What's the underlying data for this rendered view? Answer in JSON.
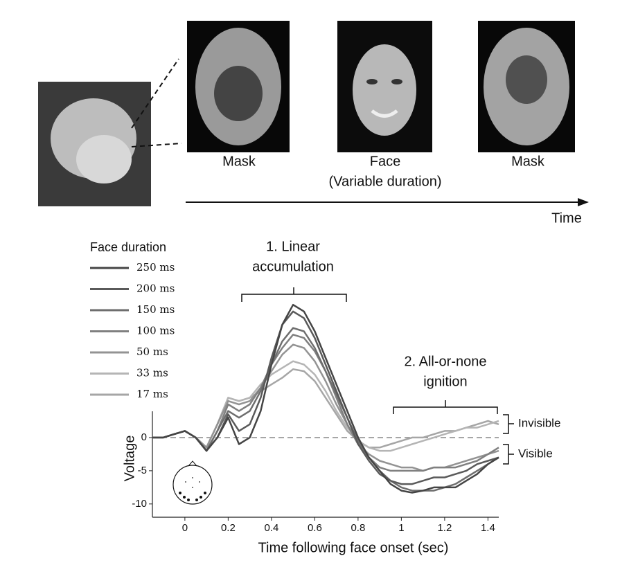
{
  "stimuli": {
    "labels": [
      "Mask",
      "Face",
      "(Variable duration)",
      "Mask"
    ],
    "time_label": "Time"
  },
  "chart_data": {
    "type": "line",
    "xlabel": "Time following face onset (sec)",
    "ylabel": "Voltage",
    "legend_title": "Face duration",
    "annotations": [
      "1. Linear",
      "accumulation",
      "2. All-or-none",
      "ignition",
      "Invisible",
      "Visible"
    ],
    "x": [
      -0.15,
      -0.1,
      -0.05,
      0,
      0.05,
      0.1,
      0.15,
      0.2,
      0.25,
      0.3,
      0.35,
      0.4,
      0.45,
      0.5,
      0.55,
      0.6,
      0.65,
      0.7,
      0.75,
      0.8,
      0.85,
      0.9,
      0.95,
      1.0,
      1.05,
      1.1,
      1.15,
      1.2,
      1.25,
      1.3,
      1.35,
      1.4,
      1.45
    ],
    "series": [
      {
        "name": "250 ms",
        "color": "#454545",
        "values": [
          0,
          0,
          0.5,
          1,
          0,
          -2,
          0,
          3,
          -1,
          0,
          4,
          11,
          17,
          20,
          19,
          16,
          12,
          8,
          4,
          0,
          -3,
          -5,
          -7,
          -8,
          -8.3,
          -8,
          -7.5,
          -7.5,
          -7.5,
          -6.5,
          -5.5,
          -4,
          -3
        ]
      },
      {
        "name": "200 ms",
        "color": "#5a5a5a",
        "values": [
          0,
          0,
          0.5,
          1,
          0,
          -2,
          0,
          3.5,
          1,
          2,
          6,
          12,
          17,
          19,
          18,
          15,
          11,
          7,
          3,
          -1,
          -3.5,
          -5.5,
          -6.5,
          -7,
          -7,
          -6.5,
          -6,
          -6,
          -5.5,
          -5,
          -4,
          -3.5,
          -3
        ]
      },
      {
        "name": "150 ms",
        "color": "#6e6e6e",
        "values": [
          0,
          0,
          0.5,
          1,
          0,
          -2,
          1,
          4,
          3,
          4,
          7,
          11,
          14.5,
          16.5,
          16,
          13.5,
          10,
          6.5,
          3,
          -0.5,
          -3,
          -5,
          -6.5,
          -7.5,
          -8,
          -8,
          -8,
          -7.5,
          -7,
          -6,
          -5,
          -4,
          -3
        ]
      },
      {
        "name": "100 ms",
        "color": "#808080",
        "values": [
          0,
          0,
          0.5,
          1,
          0,
          -2,
          1,
          5,
          4,
          5,
          7.5,
          11,
          13.5,
          15.5,
          15,
          13,
          10,
          6,
          2,
          -1,
          -3,
          -4.5,
          -5,
          -5,
          -5,
          -5,
          -4.5,
          -4.5,
          -4.5,
          -4,
          -3.5,
          -2.5,
          -1.5
        ]
      },
      {
        "name": "50 ms",
        "color": "#939393",
        "values": [
          0,
          0,
          0.5,
          1,
          0,
          -1.5,
          2,
          5.5,
          5,
          5.5,
          7.5,
          10,
          12.5,
          14,
          13.5,
          11.5,
          8.5,
          5,
          2,
          -1,
          -2.5,
          -3.5,
          -4,
          -4.5,
          -4.5,
          -5,
          -4.5,
          -4.5,
          -4,
          -3.5,
          -3,
          -2.5,
          -2
        ]
      },
      {
        "name": "33 ms",
        "color": "#b5b5b5",
        "values": [
          0,
          0,
          0.5,
          1,
          0,
          -1.5,
          2,
          6,
          5.5,
          6,
          8,
          9.5,
          10.5,
          11.5,
          11,
          9.5,
          7,
          4,
          1.5,
          -0.5,
          -1.5,
          -2,
          -2,
          -1.5,
          -1,
          -0.5,
          0,
          0.5,
          1,
          1.5,
          1.5,
          2,
          2.5
        ]
      },
      {
        "name": "17 ms",
        "color": "#a6a6a6",
        "values": [
          0,
          0,
          0.5,
          1,
          0,
          -1.5,
          2,
          6,
          5.5,
          6,
          7,
          8,
          9,
          10.3,
          10,
          8.5,
          6,
          3.5,
          1,
          -0.5,
          -1.5,
          -1.5,
          -1,
          -0.5,
          0,
          0,
          0.5,
          1,
          1,
          1.5,
          2,
          2.5,
          2
        ]
      }
    ],
    "xlim": [
      -0.15,
      1.45
    ],
    "xticks": [
      0,
      0.2,
      0.4,
      0.6,
      0.8,
      1,
      1.2,
      1.4
    ],
    "ylim": [
      -12,
      22
    ],
    "yticks": [
      0,
      -5,
      -10
    ]
  }
}
